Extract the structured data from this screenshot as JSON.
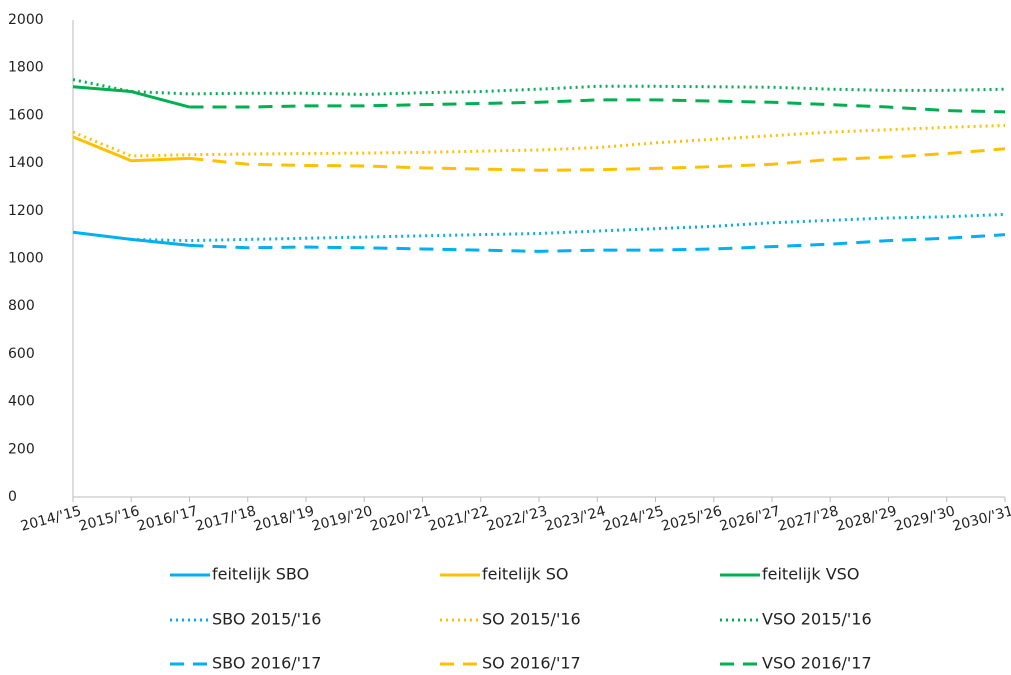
{
  "chart_data": {
    "type": "line",
    "categories": [
      "2014/'15",
      "2015/'16",
      "2016/'17",
      "2017/'18",
      "2018/'19",
      "2019/'20",
      "2020/'21",
      "2021/'22",
      "2022/'23",
      "2023/'24",
      "2024/'25",
      "2025/'26",
      "2026/'27",
      "2027/'28",
      "2028/'29",
      "2029/'30",
      "2030/'31"
    ],
    "ylim": [
      0,
      2000
    ],
    "yticks": [
      0,
      200,
      400,
      600,
      800,
      1000,
      1200,
      1400,
      1600,
      1800,
      2000
    ],
    "grid": false,
    "legend": "bottom",
    "series": [
      {
        "name": "feitelijk SBO",
        "color": "#00b0f0",
        "style": "solid",
        "values": [
          1110,
          1080,
          1055,
          null,
          null,
          null,
          null,
          null,
          null,
          null,
          null,
          null,
          null,
          null,
          null,
          null,
          null
        ]
      },
      {
        "name": "feitelijk SO",
        "color": "#ffc000",
        "style": "solid",
        "values": [
          1510,
          1410,
          1420,
          null,
          null,
          null,
          null,
          null,
          null,
          null,
          null,
          null,
          null,
          null,
          null,
          null,
          null
        ]
      },
      {
        "name": "feitelijk VSO",
        "color": "#00b050",
        "style": "solid",
        "values": [
          1720,
          1700,
          1635,
          null,
          null,
          null,
          null,
          null,
          null,
          null,
          null,
          null,
          null,
          null,
          null,
          null,
          null
        ]
      },
      {
        "name": "SBO 2015/'16",
        "color": "#00b0f0",
        "style": "dotted",
        "values": [
          null,
          1080,
          1075,
          1080,
          1085,
          1090,
          1095,
          1100,
          1105,
          1115,
          1125,
          1135,
          1150,
          1160,
          1170,
          1175,
          1185
        ]
      },
      {
        "name": "SO 2015/'16",
        "color": "#ffc000",
        "style": "dotted",
        "values": [
          1530,
          1430,
          1435,
          1438,
          1440,
          1442,
          1445,
          1450,
          1455,
          1465,
          1485,
          1500,
          1515,
          1530,
          1540,
          1550,
          1558
        ]
      },
      {
        "name": "VSO 2015/'16",
        "color": "#00b050",
        "style": "dotted",
        "values": [
          1750,
          1700,
          1690,
          1693,
          1693,
          1688,
          1695,
          1700,
          1710,
          1722,
          1722,
          1720,
          1718,
          1710,
          1705,
          1705,
          1710
        ]
      },
      {
        "name": "SBO 2016/'17",
        "color": "#00b0f0",
        "style": "dashed",
        "values": [
          null,
          null,
          1055,
          1045,
          1048,
          1045,
          1040,
          1035,
          1030,
          1035,
          1035,
          1040,
          1050,
          1060,
          1075,
          1085,
          1100
        ]
      },
      {
        "name": "SO 2016/'17",
        "color": "#ffc000",
        "style": "dashed",
        "values": [
          null,
          null,
          1420,
          1395,
          1390,
          1388,
          1380,
          1375,
          1370,
          1372,
          1378,
          1385,
          1395,
          1415,
          1425,
          1440,
          1460
        ]
      },
      {
        "name": "VSO 2016/'17",
        "color": "#00b050",
        "style": "dashed",
        "values": [
          null,
          null,
          1635,
          1635,
          1640,
          1640,
          1645,
          1650,
          1655,
          1665,
          1665,
          1660,
          1655,
          1645,
          1635,
          1620,
          1615
        ]
      }
    ]
  }
}
